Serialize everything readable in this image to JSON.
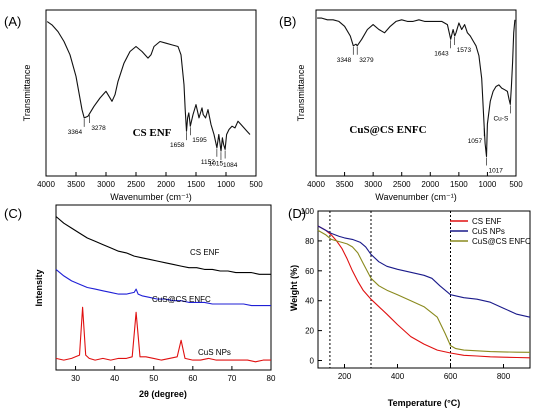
{
  "chart_data": [
    {
      "panel_label": "(A)",
      "type": "line",
      "xlabel": "Wavenumber (cm⁻¹)",
      "ylabel": "Transmittance",
      "xlim": [
        4000,
        500
      ],
      "x_ticks": [
        "4000",
        "3500",
        "3000",
        "2500",
        "2000",
        "1500",
        "1000",
        "500"
      ],
      "annotation": "CS ENF",
      "peak_labels": [
        {
          "x": 3364,
          "text": "3364"
        },
        {
          "x": 3278,
          "text": "3278"
        },
        {
          "x": 1658,
          "text": "1658"
        },
        {
          "x": 1595,
          "text": "1595"
        },
        {
          "x": 1152,
          "text": "1152"
        },
        {
          "x": 1084,
          "text": "1084"
        },
        {
          "x": 1015,
          "text": "1015"
        }
      ],
      "series": [
        {
          "color": "#111111",
          "x": [
            3980,
            3900,
            3800,
            3700,
            3600,
            3500,
            3450,
            3400,
            3364,
            3300,
            3200,
            3100,
            3000,
            2950,
            2900,
            2850,
            2800,
            2700,
            2600,
            2500,
            2400,
            2300,
            2250,
            2200,
            2100,
            2000,
            1900,
            1800,
            1750,
            1700,
            1680,
            1658,
            1640,
            1620,
            1600,
            1595,
            1550,
            1500,
            1450,
            1400,
            1380,
            1340,
            1300,
            1250,
            1200,
            1152,
            1120,
            1084,
            1060,
            1040,
            1015,
            990,
            950,
            900,
            850,
            800,
            750,
            700,
            650,
            600
          ],
          "y": [
            0.98,
            0.96,
            0.92,
            0.86,
            0.78,
            0.65,
            0.55,
            0.45,
            0.4,
            0.41,
            0.47,
            0.52,
            0.56,
            0.53,
            0.5,
            0.54,
            0.62,
            0.73,
            0.8,
            0.83,
            0.8,
            0.76,
            0.78,
            0.83,
            0.86,
            0.85,
            0.84,
            0.83,
            0.78,
            0.6,
            0.45,
            0.32,
            0.4,
            0.43,
            0.37,
            0.35,
            0.42,
            0.48,
            0.4,
            0.46,
            0.42,
            0.4,
            0.45,
            0.36,
            0.3,
            0.22,
            0.3,
            0.2,
            0.28,
            0.24,
            0.21,
            0.3,
            0.33,
            0.35,
            0.34,
            0.38,
            0.36,
            0.34,
            0.32,
            0.3
          ]
        }
      ]
    },
    {
      "panel_label": "(B)",
      "type": "line",
      "xlabel": "Wavenumber (cm⁻¹)",
      "ylabel": "Transmittance",
      "xlim": [
        4000,
        500
      ],
      "x_ticks": [
        "4000",
        "3500",
        "3000",
        "2500",
        "2000",
        "1500",
        "1000",
        "500"
      ],
      "annotation": "CuS@CS ENFC",
      "peak_labels": [
        {
          "x": 3348,
          "text": "3348"
        },
        {
          "x": 3279,
          "text": "3279"
        },
        {
          "x": 1643,
          "text": "1643"
        },
        {
          "x": 1573,
          "text": "1573"
        },
        {
          "x": 1057,
          "text": "1057"
        },
        {
          "x": 1017,
          "text": "1017"
        },
        {
          "x": 600,
          "text": "Cu-S"
        }
      ],
      "series": [
        {
          "color": "#111111",
          "x": [
            3980,
            3900,
            3800,
            3700,
            3600,
            3500,
            3400,
            3348,
            3300,
            3279,
            3200,
            3100,
            3000,
            2900,
            2800,
            2700,
            2600,
            2500,
            2400,
            2300,
            2200,
            2100,
            2000,
            1900,
            1800,
            1700,
            1643,
            1600,
            1573,
            1550,
            1500,
            1450,
            1400,
            1350,
            1300,
            1250,
            1200,
            1150,
            1100,
            1057,
            1040,
            1017,
            1000,
            950,
            900,
            850,
            800,
            750,
            700,
            650,
            620,
            600,
            580,
            560,
            540,
            520
          ],
          "y": [
            0.97,
            0.97,
            0.96,
            0.96,
            0.95,
            0.92,
            0.86,
            0.8,
            0.81,
            0.8,
            0.84,
            0.9,
            0.93,
            0.9,
            0.88,
            0.92,
            0.95,
            0.96,
            0.95,
            0.95,
            0.96,
            0.95,
            0.95,
            0.95,
            0.95,
            0.93,
            0.84,
            0.9,
            0.86,
            0.88,
            0.94,
            0.9,
            0.93,
            0.88,
            0.86,
            0.83,
            0.8,
            0.74,
            0.6,
            0.3,
            0.2,
            0.12,
            0.32,
            0.46,
            0.52,
            0.55,
            0.56,
            0.54,
            0.53,
            0.52,
            0.47,
            0.44,
            0.55,
            0.7,
            0.88,
            0.96
          ]
        }
      ]
    },
    {
      "panel_label": "(C)",
      "type": "line",
      "xlabel": "2θ (degree)",
      "ylabel": "Intensity",
      "xlim": [
        25,
        80
      ],
      "x_ticks": [
        "30",
        "40",
        "50",
        "60",
        "70",
        "80"
      ],
      "series": [
        {
          "name": "CS ENF",
          "color": "#000000",
          "x": [
            25,
            27,
            29,
            31,
            33,
            35,
            37,
            39,
            41,
            43,
            45,
            47,
            49,
            51,
            53,
            55,
            57,
            59,
            61,
            63,
            65,
            67,
            69,
            71,
            73,
            75,
            77,
            80
          ],
          "y": [
            0.93,
            0.89,
            0.86,
            0.83,
            0.8,
            0.78,
            0.76,
            0.74,
            0.72,
            0.71,
            0.69,
            0.68,
            0.67,
            0.66,
            0.65,
            0.64,
            0.63,
            0.62,
            0.62,
            0.61,
            0.61,
            0.6,
            0.6,
            0.59,
            0.59,
            0.59,
            0.58,
            0.58
          ]
        },
        {
          "name": "CuS@CS ENFC",
          "color": "#1f1fd6",
          "x": [
            25,
            27,
            29,
            31,
            32,
            33,
            35,
            37,
            39,
            41,
            43,
            45,
            45.5,
            46,
            47,
            49,
            51,
            53,
            55,
            57,
            59,
            61,
            63,
            65,
            67,
            69,
            71,
            73,
            75,
            77,
            80
          ],
          "y": [
            0.61,
            0.57,
            0.54,
            0.52,
            0.51,
            0.5,
            0.49,
            0.48,
            0.47,
            0.46,
            0.46,
            0.47,
            0.49,
            0.46,
            0.45,
            0.44,
            0.43,
            0.43,
            0.42,
            0.42,
            0.41,
            0.41,
            0.41,
            0.4,
            0.4,
            0.4,
            0.4,
            0.4,
            0.39,
            0.39,
            0.39
          ]
        },
        {
          "name": "CuS NPs",
          "color": "#e01010",
          "x": [
            25,
            27,
            29,
            30,
            31,
            31.8,
            32.6,
            33.5,
            35,
            37,
            39,
            41,
            43,
            44.5,
            45.5,
            46.5,
            48,
            50,
            52,
            54,
            56,
            57,
            58,
            60,
            62,
            64,
            66,
            68,
            70,
            72,
            74,
            76,
            78,
            80
          ],
          "y": [
            0.07,
            0.06,
            0.07,
            0.08,
            0.09,
            0.38,
            0.09,
            0.07,
            0.06,
            0.07,
            0.06,
            0.07,
            0.07,
            0.08,
            0.35,
            0.08,
            0.08,
            0.07,
            0.06,
            0.07,
            0.08,
            0.18,
            0.07,
            0.06,
            0.06,
            0.07,
            0.06,
            0.06,
            0.06,
            0.06,
            0.06,
            0.05,
            0.06,
            0.06
          ]
        }
      ],
      "series_labels": [
        "CS ENF",
        "CuS@CS ENFC",
        "CuS NPs"
      ]
    },
    {
      "panel_label": "(D)",
      "type": "line",
      "xlabel": "Temperature (°C)",
      "ylabel": "Weight (%)",
      "xlim": [
        100,
        900
      ],
      "ylim": [
        -5,
        100
      ],
      "x_ticks": [
        "200",
        "400",
        "600",
        "800"
      ],
      "y_ticks": [
        "0",
        "20",
        "40",
        "60",
        "80",
        "100"
      ],
      "vlines": [
        145,
        300,
        600
      ],
      "legend": "top-right",
      "series": [
        {
          "name": "CS ENF",
          "color": "#e01010",
          "x": [
            100,
            130,
            150,
            170,
            190,
            210,
            230,
            250,
            270,
            300,
            330,
            360,
            400,
            450,
            500,
            550,
            600,
            650,
            700,
            750,
            800,
            850,
            900
          ],
          "y": [
            90,
            87,
            84,
            80,
            75,
            68,
            60,
            53,
            47,
            41,
            36,
            31,
            24,
            16,
            11,
            7,
            5,
            3.5,
            3,
            2.5,
            2.2,
            2,
            1.8
          ]
        },
        {
          "name": "CuS NPs",
          "color": "#1a1a8a",
          "x": [
            100,
            130,
            150,
            180,
            200,
            230,
            260,
            280,
            300,
            330,
            360,
            400,
            450,
            500,
            530,
            560,
            600,
            650,
            700,
            750,
            800,
            850,
            900
          ],
          "y": [
            90,
            87,
            85,
            83,
            82,
            81,
            79,
            76,
            71,
            66,
            63,
            61,
            59,
            57,
            55,
            50,
            44,
            42,
            41,
            39,
            35,
            31,
            29
          ]
        },
        {
          "name": "CuS@CS ENFC",
          "color": "#8a8a1e",
          "x": [
            100,
            130,
            150,
            170,
            190,
            210,
            230,
            250,
            270,
            300,
            330,
            360,
            400,
            450,
            500,
            550,
            580,
            600,
            620,
            650,
            700,
            750,
            800,
            850,
            900
          ],
          "y": [
            87,
            84,
            81,
            80,
            79,
            78,
            76,
            72,
            65,
            55,
            50,
            47,
            44,
            40,
            36,
            29,
            18,
            10,
            8,
            7,
            6.5,
            6,
            5.8,
            5.6,
            5.5
          ]
        }
      ]
    }
  ]
}
